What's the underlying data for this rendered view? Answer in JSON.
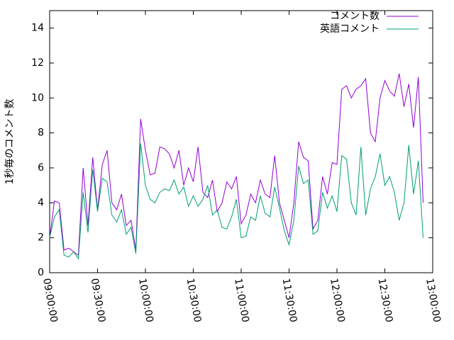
{
  "chart_data": {
    "type": "line",
    "ylabel": "1秒毎のコメント数",
    "x": [
      "09:00:00",
      "09:03:00",
      "09:06:00",
      "09:09:00",
      "09:12:00",
      "09:15:00",
      "09:18:00",
      "09:21:00",
      "09:24:00",
      "09:27:00",
      "09:30:00",
      "09:33:00",
      "09:36:00",
      "09:39:00",
      "09:42:00",
      "09:45:00",
      "09:48:00",
      "09:51:00",
      "09:54:00",
      "09:57:00",
      "10:00:00",
      "10:03:00",
      "10:06:00",
      "10:09:00",
      "10:12:00",
      "10:15:00",
      "10:18:00",
      "10:21:00",
      "10:24:00",
      "10:27:00",
      "10:30:00",
      "10:33:00",
      "10:36:00",
      "10:39:00",
      "10:42:00",
      "10:45:00",
      "10:48:00",
      "10:51:00",
      "10:54:00",
      "10:57:00",
      "11:00:00",
      "11:03:00",
      "11:06:00",
      "11:09:00",
      "11:12:00",
      "11:15:00",
      "11:18:00",
      "11:21:00",
      "11:24:00",
      "11:27:00",
      "11:30:00",
      "11:33:00",
      "11:36:00",
      "11:39:00",
      "11:42:00",
      "11:45:00",
      "11:48:00",
      "11:51:00",
      "11:54:00",
      "11:57:00",
      "12:00:00",
      "12:03:00",
      "12:06:00",
      "12:09:00",
      "12:12:00",
      "12:15:00",
      "12:18:00",
      "12:21:00",
      "12:24:00",
      "12:27:00",
      "12:30:00",
      "12:33:00",
      "12:36:00",
      "12:39:00",
      "12:42:00",
      "12:45:00",
      "12:48:00",
      "12:51:00",
      "12:54:00"
    ],
    "series": [
      {
        "name": "コメント数",
        "color": "#9400d3",
        "values": [
          2.0,
          4.1,
          4.0,
          1.3,
          1.4,
          1.2,
          1.0,
          6.0,
          2.7,
          6.6,
          3.6,
          6.2,
          7.0,
          4.0,
          3.6,
          4.5,
          2.7,
          3.0,
          1.3,
          8.8,
          7.0,
          5.6,
          5.7,
          7.2,
          7.1,
          6.8,
          6.0,
          7.0,
          5.0,
          6.0,
          5.2,
          7.2,
          4.6,
          4.3,
          5.3,
          3.5,
          4.0,
          5.2,
          4.8,
          5.5,
          2.8,
          3.3,
          4.5,
          4.0,
          5.3,
          4.5,
          4.3,
          6.7,
          4.0,
          3.0,
          2.0,
          4.0,
          7.5,
          6.6,
          6.4,
          2.5,
          3.0,
          5.5,
          4.5,
          6.3,
          6.2,
          10.5,
          10.7,
          10.0,
          10.5,
          10.7,
          11.1,
          8.0,
          7.5,
          10.0,
          11.0,
          10.4,
          10.1,
          11.4,
          9.5,
          10.8,
          8.3,
          11.2,
          4.0
        ]
      },
      {
        "name": "英語コメント",
        "color": "#009e73",
        "values": [
          2.0,
          3.2,
          3.6,
          1.0,
          0.9,
          1.2,
          0.8,
          4.6,
          2.3,
          5.9,
          3.5,
          5.4,
          5.2,
          3.3,
          2.9,
          3.6,
          2.2,
          2.6,
          1.1,
          7.4,
          5.0,
          4.2,
          4.0,
          4.6,
          4.8,
          4.7,
          5.3,
          4.5,
          4.9,
          3.8,
          4.4,
          3.8,
          4.2,
          5.0,
          3.3,
          3.6,
          2.6,
          2.5,
          3.2,
          4.2,
          2.0,
          2.1,
          3.2,
          3.0,
          4.4,
          3.4,
          3.2,
          4.9,
          3.7,
          2.4,
          1.6,
          3.0,
          6.1,
          5.1,
          5.3,
          2.2,
          2.4,
          4.6,
          3.7,
          4.4,
          3.5,
          6.7,
          6.5,
          4.0,
          3.3,
          7.2,
          3.3,
          4.8,
          5.5,
          6.8,
          5.0,
          5.5,
          4.6,
          3.0,
          4.0,
          7.3,
          4.5,
          6.4,
          2.0
        ]
      }
    ],
    "xlim": [
      "09:00:00",
      "13:00:00"
    ],
    "xticks": [
      "09:00:00",
      "09:30:00",
      "10:00:00",
      "10:30:00",
      "11:00:00",
      "11:30:00",
      "12:00:00",
      "12:30:00",
      "13:00:00"
    ],
    "ylim": [
      0,
      15
    ],
    "yticks": [
      0,
      2,
      4,
      6,
      8,
      10,
      12,
      14
    ],
    "legend": "top-right"
  }
}
